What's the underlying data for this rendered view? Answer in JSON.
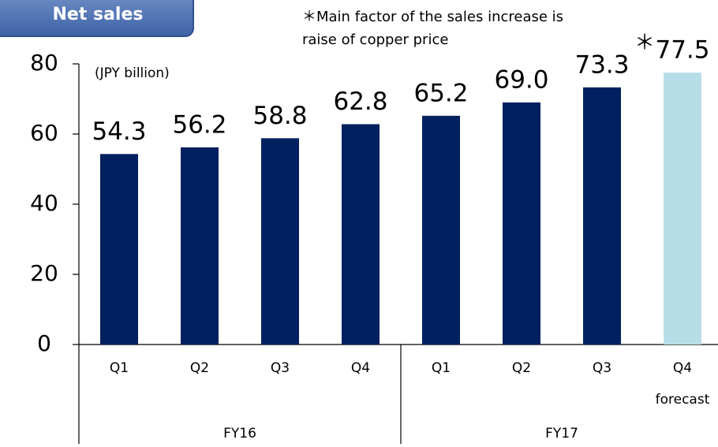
{
  "chart_data": {
    "type": "bar",
    "title": "Net sales",
    "annotation": [
      "＊Main factor of the sales increase is",
      "raise of copper price"
    ],
    "unit_label": "(JPY billion)",
    "ylim": [
      0,
      80
    ],
    "yticks": [
      0,
      20,
      40,
      60,
      80
    ],
    "groups": [
      {
        "name": "FY16",
        "categories": [
          "Q1",
          "Q2",
          "Q3",
          "Q4"
        ],
        "values": [
          54.3,
          56.2,
          58.8,
          62.8
        ],
        "value_labels": [
          "54.3",
          "56.2",
          "58.8",
          "62.8"
        ],
        "colors": [
          "#002060",
          "#002060",
          "#002060",
          "#002060"
        ],
        "notes": [
          null,
          null,
          null,
          null
        ],
        "sublabels": [
          null,
          null,
          null,
          null
        ]
      },
      {
        "name": "FY17",
        "categories": [
          "Q1",
          "Q2",
          "Q3",
          "Q4"
        ],
        "values": [
          65.2,
          69.0,
          73.3,
          77.5
        ],
        "value_labels": [
          "65.2",
          "69.0",
          "73.3",
          "77.5"
        ],
        "colors": [
          "#002060",
          "#002060",
          "#002060",
          "#b7dde8"
        ],
        "notes": [
          null,
          null,
          "＊",
          "＊"
        ],
        "sublabels": [
          null,
          null,
          null,
          "forecast"
        ]
      }
    ]
  }
}
